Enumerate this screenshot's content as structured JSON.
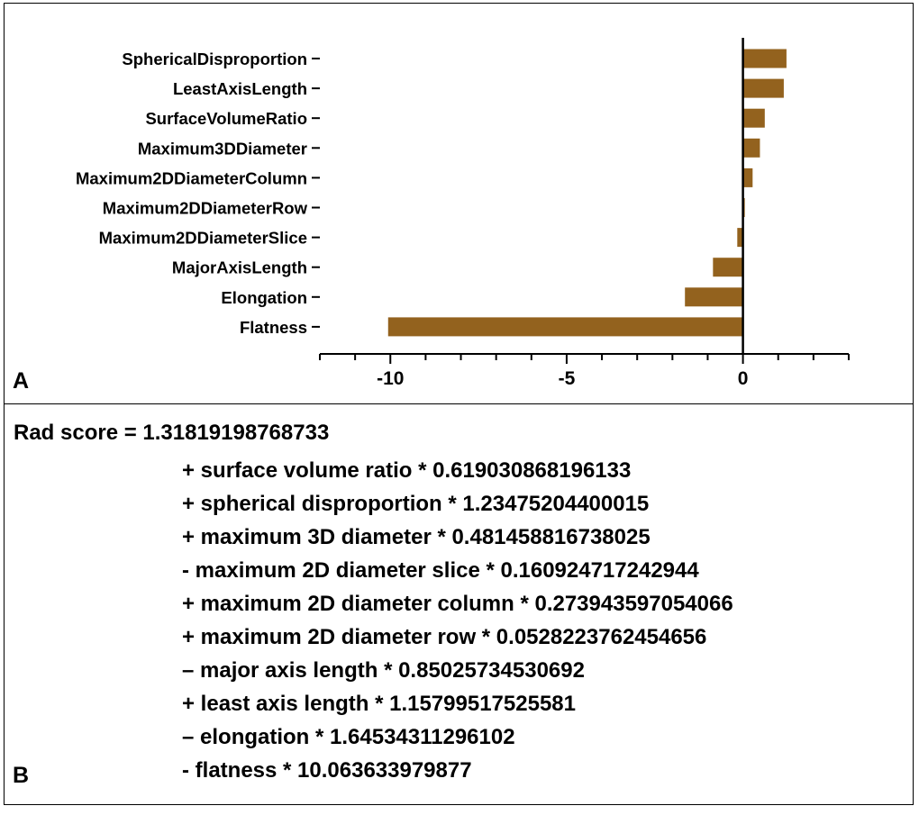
{
  "panel_a": {
    "letter": "A",
    "chart_data": {
      "type": "bar",
      "orientation": "horizontal",
      "categories": [
        "SphericalDisproportion",
        "LeastAxisLength",
        "SurfaceVolumeRatio",
        "Maximum3DDiameter",
        "Maximum2DDiameterColumn",
        "Maximum2DDiameterRow",
        "Maximum2DDiameterSlice",
        "MajorAxisLength",
        "Elongation",
        "Flatness"
      ],
      "values": [
        1.23475204400015,
        1.15799517525581,
        0.619030868196133,
        0.481458816738025,
        0.273943597054066,
        0.0528223762454656,
        -0.160924717242944,
        -0.85025734530692,
        -1.64534311296102,
        -10.063633979877
      ],
      "xlim": [
        -12,
        3
      ],
      "xticks": [
        -10,
        -5,
        0
      ],
      "xtick_labels": [
        "-10",
        "-5",
        "0"
      ],
      "minor_ticks": [
        -11,
        -9,
        -8,
        -7,
        -6,
        -4,
        -3,
        -2,
        -1,
        1,
        2
      ],
      "bar_color": "#93621e",
      "grid": false,
      "title": "",
      "xlabel": "",
      "ylabel": ""
    }
  },
  "panel_b": {
    "letter": "B",
    "formula_head": "Rad score = 1.31819198768733",
    "terms": [
      "+ surface volume ratio * 0.619030868196133",
      "+ spherical disproportion * 1.23475204400015",
      "+ maximum 3D diameter * 0.481458816738025",
      "- maximum 2D diameter slice * 0.160924717242944",
      "+ maximum 2D diameter column * 0.273943597054066",
      "+ maximum 2D diameter row * 0.0528223762454656",
      "– major axis length * 0.85025734530692",
      "+ least axis length * 1.15799517525581",
      "– elongation * 1.64534311296102",
      "- flatness * 10.063633979877"
    ]
  }
}
